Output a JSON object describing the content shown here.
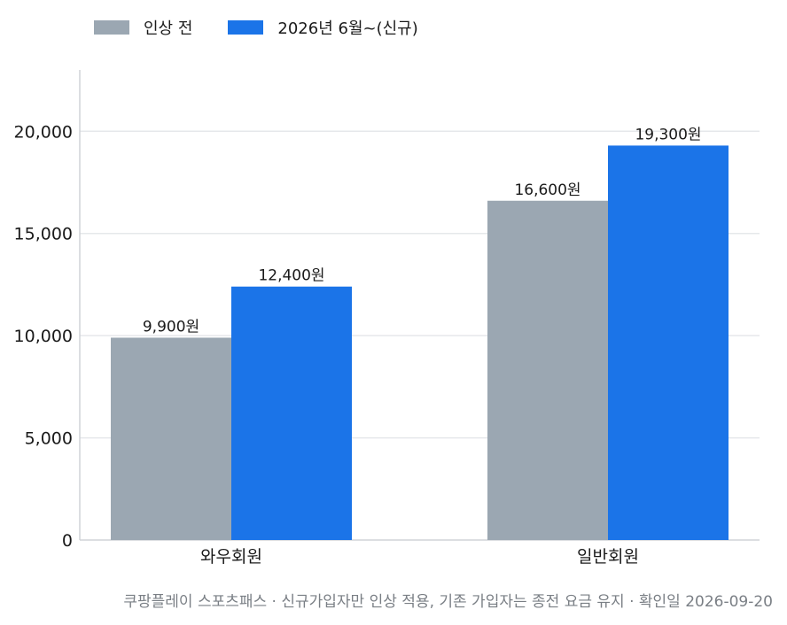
{
  "chart_data": {
    "type": "bar",
    "categories": [
      "와우회원",
      "일반회원"
    ],
    "series": [
      {
        "name": "인상 전",
        "values": [
          9900,
          16600
        ],
        "labels": [
          "9,900원",
          "16,600원"
        ],
        "color": "#9ba7b2"
      },
      {
        "name": "2026년 6월~(신규)",
        "values": [
          12400,
          19300
        ],
        "labels": [
          "12,400원",
          "19,300원"
        ],
        "color": "#1b74e8"
      }
    ],
    "yticks": [
      "0",
      "5,000",
      "10,000",
      "15,000",
      "20,000"
    ],
    "ylim": [
      0,
      23000
    ],
    "grid": true,
    "legend_position": "top-left"
  },
  "footer": "쿠팡플레이 스포츠패스 · 신규가입자만 인상 적용, 기존 가입자는 종전 요금 유지 · 확인일 2026-09-20"
}
